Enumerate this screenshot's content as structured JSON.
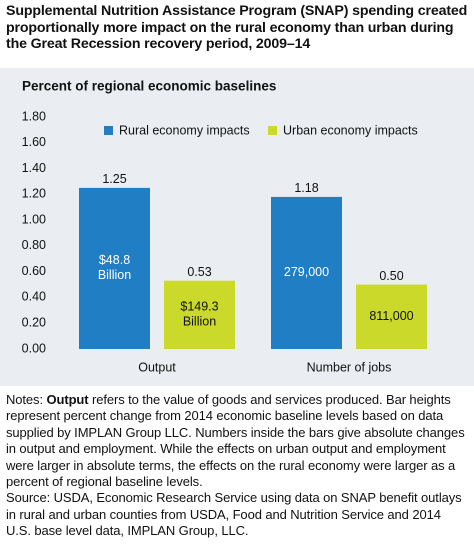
{
  "chart_data": {
    "type": "bar",
    "title": "Supplemental Nutrition Assistance Program (SNAP) spending created proportionally more impact on the rural economy than urban during the Great Recession recovery period, 2009–14",
    "y_label": "Percent of regional economic baselines",
    "categories": [
      "Output",
      "Number of jobs"
    ],
    "series": [
      {
        "name": "Rural economy impacts",
        "color": "#1f7ec4",
        "values": [
          1.25,
          1.18
        ],
        "value_labels": [
          "1.25",
          "1.18"
        ],
        "bar_texts": [
          "$48.8 Billion",
          "279,000"
        ]
      },
      {
        "name": "Urban economy impacts",
        "color": "#cbd92b",
        "values": [
          0.53,
          0.5
        ],
        "value_labels": [
          "0.53",
          "0.50"
        ],
        "bar_texts": [
          "$149.3 Billion",
          "811,000"
        ]
      }
    ],
    "ylim": [
      0,
      1.8
    ],
    "yticks": [
      {
        "value": 0,
        "label": "0.00"
      },
      {
        "value": 0.2,
        "label": "0.20"
      },
      {
        "value": 0.4,
        "label": "0.40"
      },
      {
        "value": 0.6,
        "label": "0.60"
      },
      {
        "value": 0.8,
        "label": "0.80"
      },
      {
        "value": 1.0,
        "label": "1.00"
      },
      {
        "value": 1.2,
        "label": "1.20"
      },
      {
        "value": 1.4,
        "label": "1.40"
      },
      {
        "value": 1.6,
        "label": "1.60"
      },
      {
        "value": 1.8,
        "label": "1.80"
      }
    ],
    "grid": false,
    "notes_label": "Notes:",
    "notes_bold": "Output",
    "notes_text": "refers to the value of goods and services produced. Bar heights represent percent change from 2014 economic baseline levels based on data supplied by IMPLAN Group LLC. Numbers inside the bars give absolute changes in output and employment. While the effects on urban output and employment were larger in absolute terms, the effects on the rural economy were larger as a percent of regional baseline levels.",
    "source": "Source: USDA, Economic Research Service using data on SNAP benefit outlays in rural and urban counties from USDA, Food and Nutrition Service and 2014 U.S. base level data, IMPLAN Group, LLC."
  }
}
